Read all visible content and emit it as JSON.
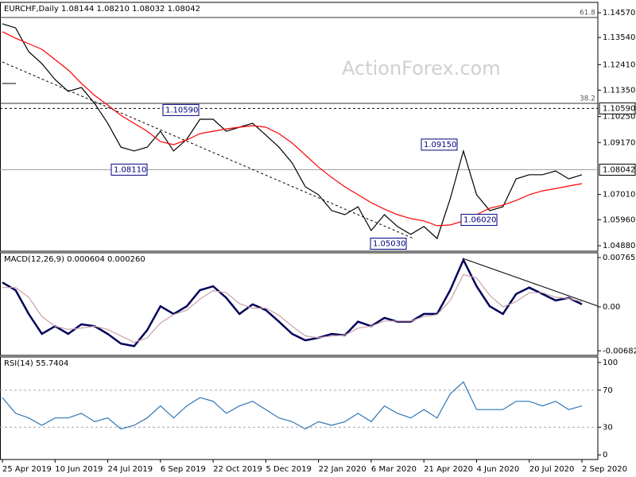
{
  "chart_data": [
    {
      "type": "line",
      "title": "EURCHF,Daily  1.08144 1.08210 1.08032 1.08042",
      "watermark": "ActionForex.com",
      "ylim": [
        1.0465,
        1.15
      ],
      "yticks": [
        {
          "value": 1.1457,
          "label": "1.14570"
        },
        {
          "value": 1.1354,
          "label": "1.13540"
        },
        {
          "value": 1.1241,
          "label": "1.12410"
        },
        {
          "value": 1.1135,
          "label": "1.11350"
        },
        {
          "value": 1.1025,
          "label": "1.10250"
        },
        {
          "value": 1.0917,
          "label": "1.09170"
        },
        {
          "value": 1.0701,
          "label": "1.07010"
        },
        {
          "value": 1.0596,
          "label": "1.05960"
        },
        {
          "value": 1.0488,
          "label": "1.04880"
        }
      ],
      "last_price": 1.08042,
      "marked_levels": [
        {
          "value": 1.1059,
          "label": "1.10590"
        }
      ],
      "fib_levels": [
        {
          "value": 1.1437,
          "label": "61.8"
        },
        {
          "value": 1.108,
          "label": "38.2"
        }
      ],
      "annotations": [
        {
          "value": 1.1059,
          "label": "1.10590"
        },
        {
          "value": 1.0811,
          "label": "1.08110"
        },
        {
          "value": 1.0915,
          "label": "1.09150"
        },
        {
          "value": 1.0503,
          "label": "1.05030"
        },
        {
          "value": 1.0602,
          "label": "1.06020"
        }
      ],
      "series": [
        {
          "color": "#000000",
          "values": [
            1.1411,
            1.1394,
            1.1295,
            1.1245,
            1.1179,
            1.113,
            1.1146,
            1.108,
            1.0997,
            1.0898,
            1.0882,
            1.0898,
            1.0964,
            1.0882,
            1.0931,
            1.1014,
            1.1014,
            1.0964,
            1.0981,
            1.0997,
            1.0948,
            1.0898,
            1.0832,
            1.0733,
            1.07,
            1.0634,
            1.0617,
            1.065,
            1.0551,
            1.0617,
            1.0568,
            1.0535,
            1.0568,
            1.0518,
            1.0683,
            1.0882,
            1.07,
            1.0634,
            1.065,
            1.0766,
            1.0783,
            1.0783,
            1.0799,
            1.0766,
            1.0783
          ]
        },
        {
          "color": "#ff0000",
          "values": [
            1.1378,
            1.1351,
            1.1328,
            1.1305,
            1.1262,
            1.1219,
            1.1163,
            1.1113,
            1.1073,
            1.103,
            1.0997,
            1.0964,
            1.0921,
            1.0908,
            1.0928,
            1.0954,
            1.0964,
            1.0974,
            1.0981,
            1.0987,
            1.0981,
            1.0954,
            1.0915,
            1.0865,
            1.0815,
            1.0772,
            1.0733,
            1.07,
            1.0667,
            1.064,
            1.0617,
            1.0601,
            1.0591,
            1.0571,
            1.0574,
            1.0591,
            1.0617,
            1.0644,
            1.0657,
            1.0676,
            1.07,
            1.0716,
            1.0726,
            1.0736,
            1.0746
          ]
        }
      ]
    },
    {
      "type": "line",
      "title": "MACD(12,26,9) 0.000604 0.000260",
      "ylim": [
        -0.00753,
        0.0084
      ],
      "yticks": [
        0.007655,
        {
          "value": 0,
          "label": "0.00"
        },
        -0.006822
      ],
      "series": [
        {
          "color": "#00005a",
          "values": [
            0.0038,
            0.0026,
            -0.0011,
            -0.0042,
            -0.003,
            -0.0042,
            -0.0027,
            -0.003,
            -0.0042,
            -0.0057,
            -0.0061,
            -0.0036,
            0.0001,
            -0.0011,
            0.0001,
            0.0026,
            0.0032,
            0.0014,
            -0.0011,
            0.0004,
            -0.0005,
            -0.0023,
            -0.0042,
            -0.0052,
            -0.0048,
            -0.0042,
            -0.0044,
            -0.0023,
            -0.003,
            -0.0017,
            -0.0023,
            -0.0023,
            -0.0011,
            -0.0011,
            0.0026,
            0.0073,
            0.0032,
            0.0001,
            -0.0011,
            0.002,
            0.003,
            0.002,
            0.001,
            0.0014,
            0.0004
          ]
        },
        {
          "color": "#c8a0a8",
          "values": [
            0.003,
            0.003,
            0.0015,
            -0.0015,
            -0.003,
            -0.0035,
            -0.0033,
            -0.003,
            -0.0035,
            -0.0045,
            -0.0055,
            -0.0048,
            -0.0025,
            -0.0012,
            -0.0005,
            0.0012,
            0.0025,
            0.0022,
            0.0005,
            -0.0002,
            -0.0002,
            -0.0013,
            -0.003,
            -0.0045,
            -0.0048,
            -0.0045,
            -0.0044,
            -0.0033,
            -0.003,
            -0.0022,
            -0.0022,
            -0.0022,
            -0.0015,
            -0.0012,
            0.001,
            0.005,
            0.0045,
            0.0018,
            0,
            0.0008,
            0.0022,
            0.0022,
            0.0015,
            0.0013,
            0.0008
          ]
        }
      ]
    },
    {
      "type": "line",
      "title": "RSI(14) 55.7404",
      "ylim": [
        -5,
        106
      ],
      "yticks": [
        100,
        70,
        30,
        0
      ],
      "levels": [
        70,
        30
      ],
      "categories": [
        "25 Apr 2019",
        null,
        null,
        null,
        "10 Jun 2019",
        null,
        null,
        null,
        "24 Jul 2019",
        null,
        null,
        null,
        "6 Sep 2019",
        null,
        null,
        null,
        "22 Oct 2019",
        null,
        null,
        null,
        "5 Dec 2019",
        null,
        null,
        null,
        "22 Jan 2020",
        null,
        null,
        null,
        "6 Mar 2020",
        null,
        null,
        null,
        "21 Apr 2020",
        null,
        null,
        null,
        "4 Jun 2020",
        null,
        null,
        null,
        "20 Jul 2020",
        null,
        null,
        null,
        "2 Sep 2020"
      ],
      "series": [
        {
          "color": "#2e75b6",
          "values": [
            62,
            45,
            40,
            32,
            40,
            40,
            45,
            36,
            40,
            28,
            32,
            40,
            53,
            40,
            53,
            62,
            58,
            45,
            53,
            58,
            49,
            40,
            36,
            28,
            36,
            32,
            36,
            45,
            36,
            53,
            45,
            40,
            49,
            40,
            66,
            79,
            49,
            49,
            49,
            58,
            58,
            53,
            58,
            49,
            53
          ]
        }
      ]
    }
  ]
}
